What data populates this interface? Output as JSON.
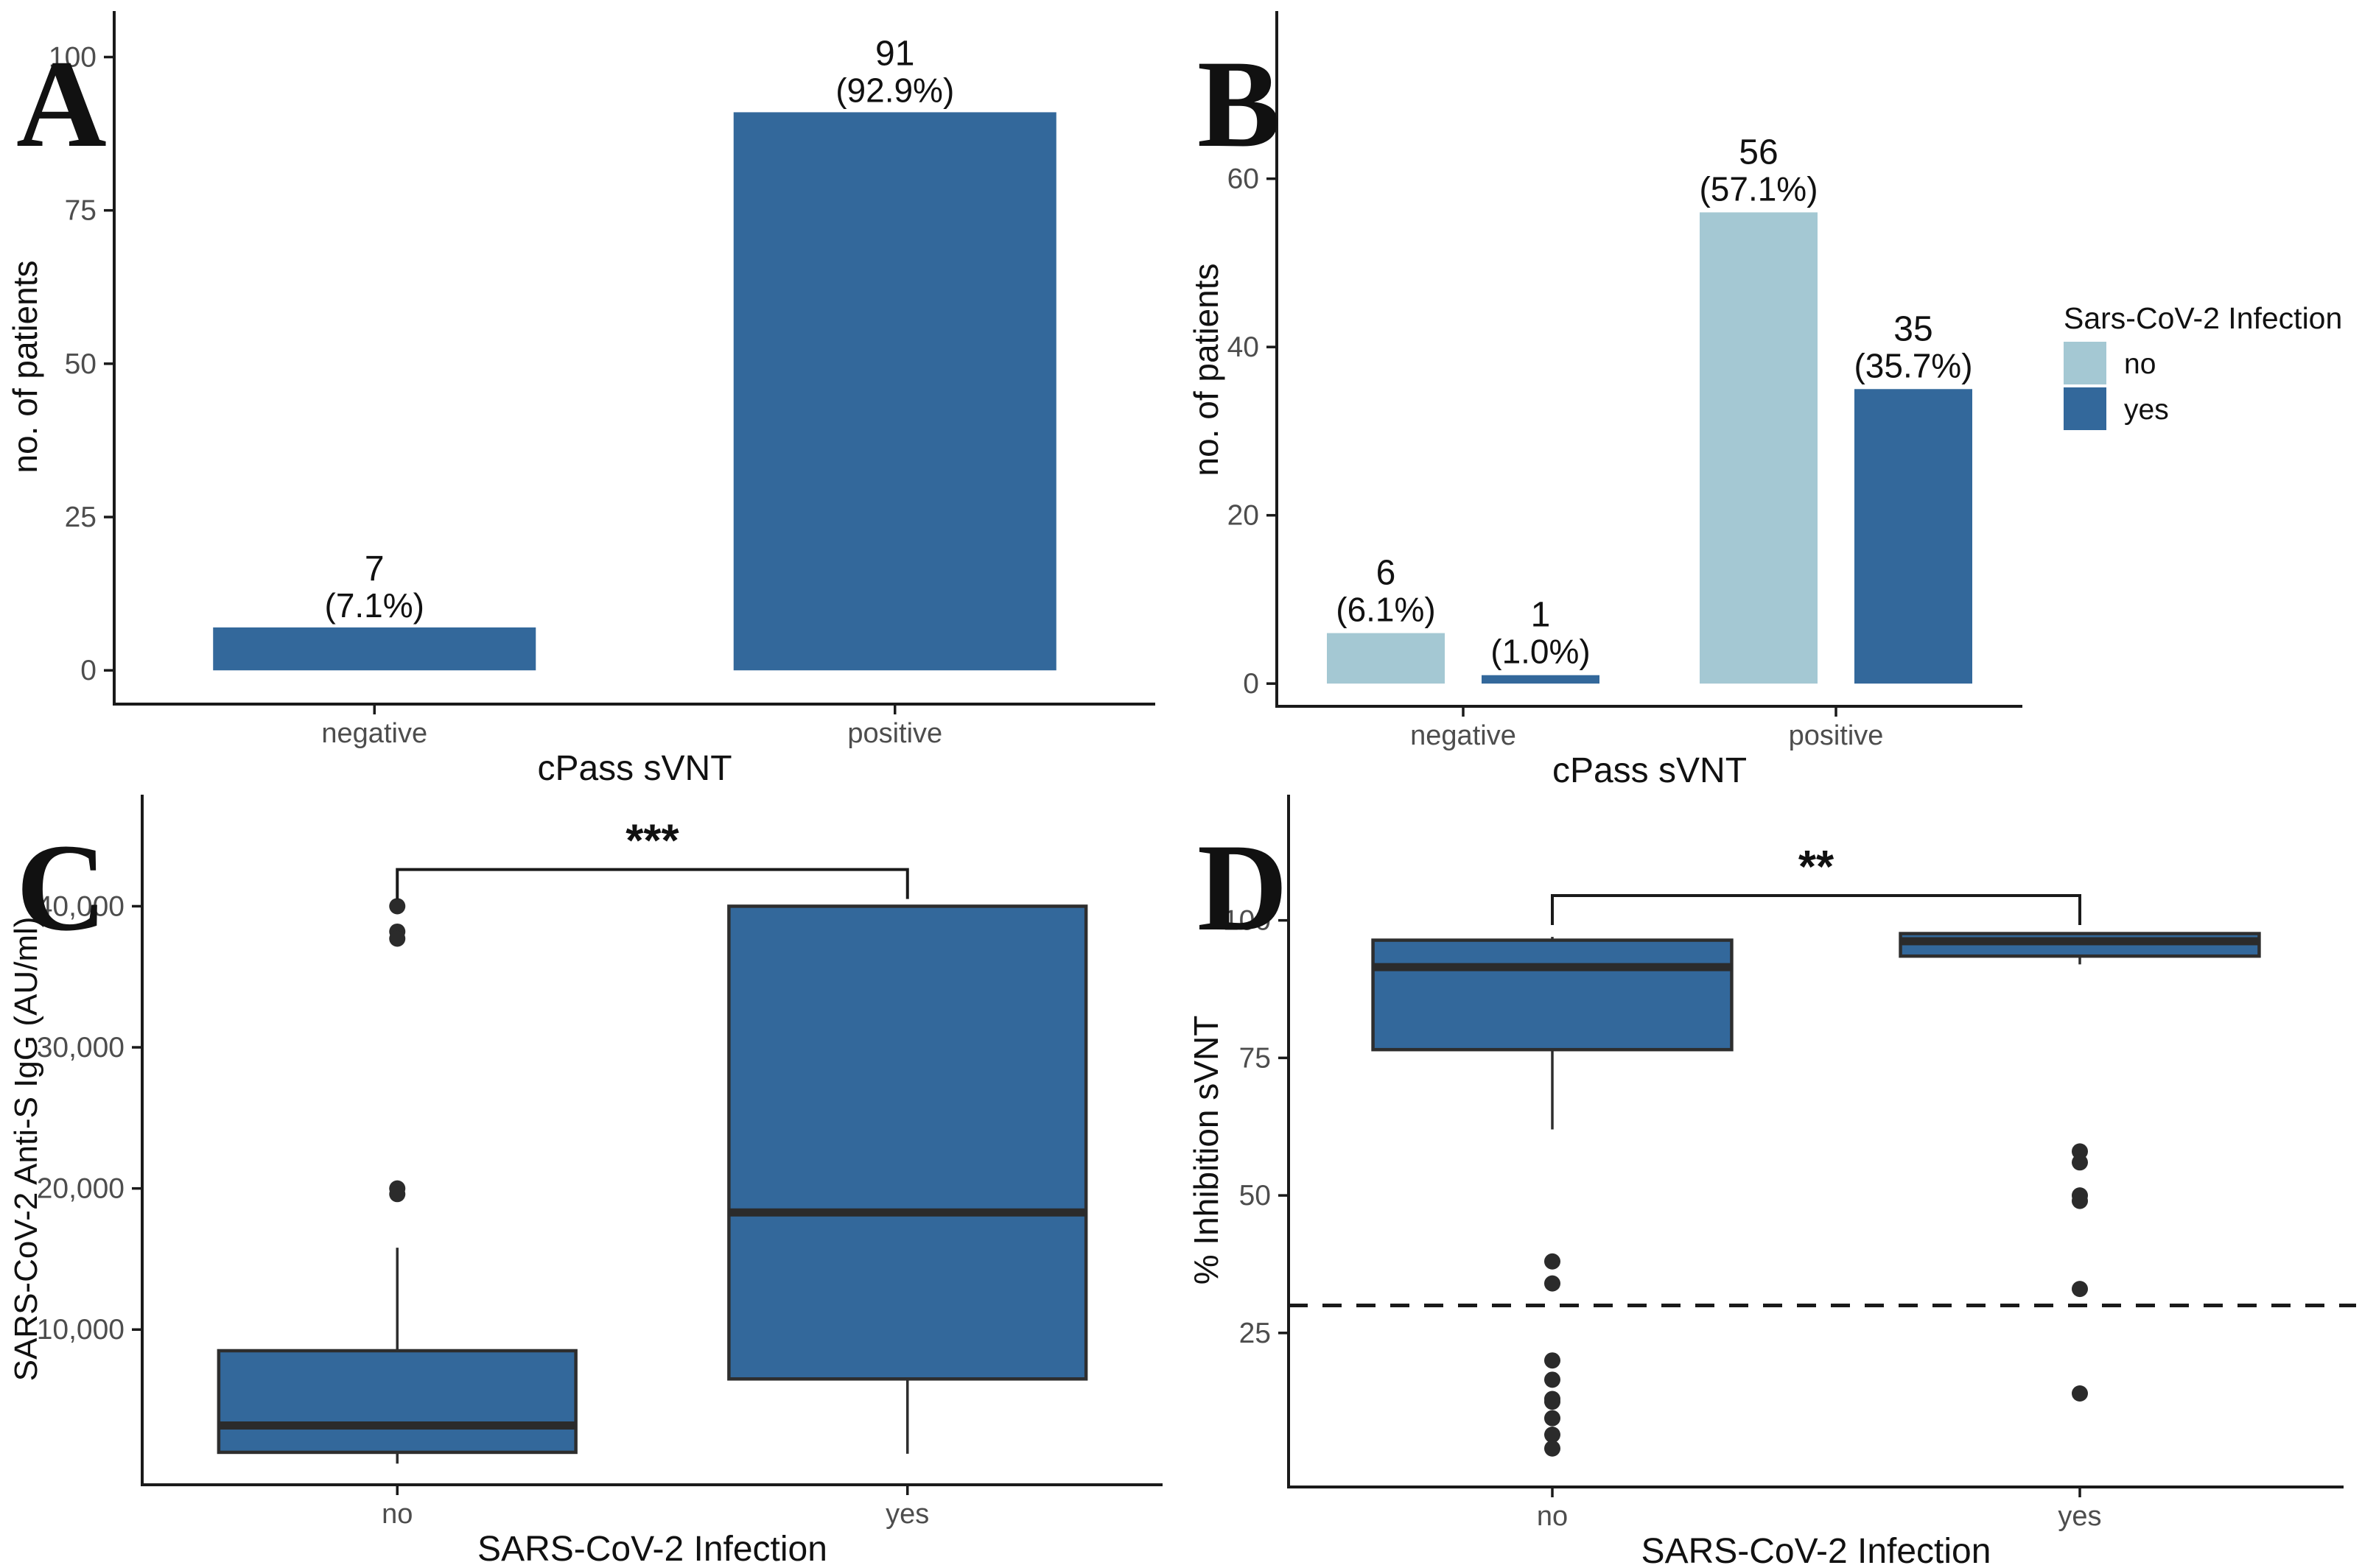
{
  "figure_background": "#ffffff",
  "colors": {
    "bar_blue": "#33689B",
    "light_blue": "#A4C8D3",
    "axis": "#1a1a1a",
    "tick_label": "#4d4d4d",
    "title_text": "#111111",
    "box_stroke": "#2e2e2e",
    "median": "#2b2b2b",
    "outlier": "#2b2b2b"
  },
  "chart_data": [
    {
      "panel_label": "A",
      "type": "bar",
      "title": "",
      "xlabel": "cPass sVNT",
      "ylabel": "no. of patients",
      "categories": [
        "negative",
        "positive"
      ],
      "values": [
        7,
        91
      ],
      "value_labels": [
        [
          "7",
          "(7.1%)"
        ],
        [
          "91",
          "(92.9%)"
        ]
      ],
      "bar_color": "#33689B",
      "yticks": [
        0,
        25,
        50,
        75,
        100
      ],
      "ytick_labels": [
        "0",
        "25",
        "50",
        "75",
        "100"
      ],
      "ylim": [
        -5.5,
        104.5
      ],
      "grid": false,
      "legend": null
    },
    {
      "panel_label": "B",
      "type": "bar",
      "title": "",
      "xlabel": "cPass sVNT",
      "ylabel": "no. of patients",
      "categories": [
        "negative",
        "positive"
      ],
      "series": [
        {
          "name": "no",
          "color": "#A4C8D3",
          "values": [
            6,
            56
          ],
          "value_labels": [
            [
              "6",
              "(6.1%)"
            ],
            [
              "56",
              "(57.1%)"
            ]
          ]
        },
        {
          "name": "yes",
          "color": "#33689B",
          "values": [
            1,
            35
          ],
          "value_labels": [
            [
              "1",
              "(1.0%)"
            ],
            [
              "35",
              "(35.7%)"
            ]
          ]
        }
      ],
      "legend": {
        "title": "Sars-CoV-2 Infection",
        "entries": [
          "no",
          "yes"
        ],
        "position": "right"
      },
      "yticks": [
        0,
        20,
        40,
        60
      ],
      "ytick_labels": [
        "0",
        "20",
        "40",
        "60"
      ],
      "ylim": [
        -2.7,
        77.3
      ],
      "grid": false
    },
    {
      "panel_label": "C",
      "type": "boxplot",
      "title": "",
      "xlabel": "SARS-CoV-2 Infection",
      "ylabel": "SARS-CoV-2 Anti-S IgG (AU/ml)",
      "categories": [
        "no",
        "yes"
      ],
      "box_color": "#33689B",
      "boxes": [
        {
          "category": "no",
          "whisker_low": 500,
          "q1": 1300,
          "median": 3200,
          "q3": 8500,
          "whisker_high": 15800,
          "outliers": [
            40000,
            38200,
            37700,
            20000,
            19600
          ]
        },
        {
          "category": "yes",
          "whisker_low": 1200,
          "q1": 6500,
          "median": 18300,
          "q3": 40000,
          "whisker_high": 40000,
          "outliers": []
        }
      ],
      "yticks": [
        10000,
        20000,
        30000,
        40000
      ],
      "ytick_labels": [
        "10,000",
        "20,000",
        "30,000",
        "40,000"
      ],
      "ylim": [
        -1000,
        46600
      ],
      "grid": false,
      "significance": {
        "label": "***",
        "bar_y": 42600
      }
    },
    {
      "panel_label": "D",
      "type": "boxplot",
      "title": "",
      "xlabel": "SARS-CoV-2 Infection",
      "ylabel": "% Inhibition sVNT",
      "categories": [
        "no",
        "yes"
      ],
      "box_color": "#33689B",
      "boxes": [
        {
          "category": "no",
          "whisker_low": 62,
          "q1": 76.5,
          "median": 91.5,
          "q3": 96.4,
          "whisker_high": 97,
          "outliers": [
            38,
            34,
            20,
            16.5,
            13,
            12.5,
            9.5,
            6.5,
            4
          ]
        },
        {
          "category": "yes",
          "whisker_low": 92,
          "q1": 93.5,
          "median": 96.2,
          "q3": 97.6,
          "whisker_high": 97.6,
          "outliers": [
            58,
            56,
            50,
            49,
            33,
            14
          ]
        }
      ],
      "yticks": [
        25,
        50,
        75,
        100
      ],
      "ytick_labels": [
        "25",
        "50",
        "75",
        "100"
      ],
      "ylim": [
        -3,
        119.5
      ],
      "cutoff": {
        "value": 30,
        "style": "dashed"
      },
      "grid": false,
      "significance": {
        "label": "**",
        "bar_y": 104.5
      }
    }
  ]
}
